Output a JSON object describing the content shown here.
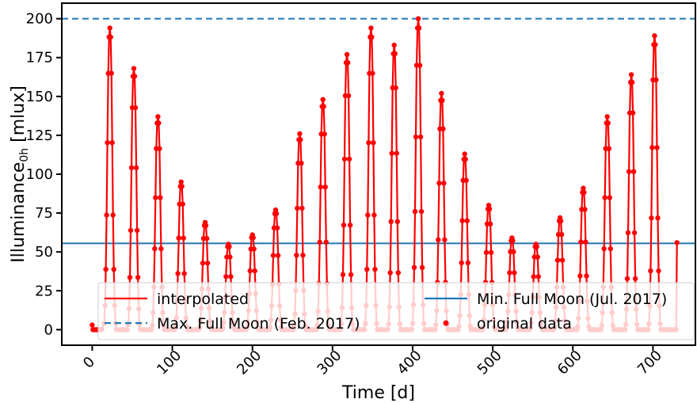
{
  "chart_data": {
    "type": "line",
    "xlabel": "Time [d]",
    "ylabel_main": "Illuminance",
    "ylabel_sub": "0h",
    "ylabel_unit": " [mlux]",
    "xlim": [
      -38,
      753
    ],
    "ylim": [
      -10,
      210
    ],
    "xticks": [
      0,
      100,
      200,
      300,
      400,
      500,
      600,
      700
    ],
    "yticks": [
      0,
      25,
      50,
      75,
      100,
      125,
      150,
      175,
      200
    ],
    "grid": false,
    "legend_placement": "lower-center",
    "legend": [
      {
        "label": "interpolated",
        "kind": "line",
        "color": "#ff0000"
      },
      {
        "label": "Max. Full Moon (Feb. 2017)",
        "kind": "dashed",
        "color": "#1f77b4"
      },
      {
        "label": "Min. Full Moon (Jul. 2017)",
        "kind": "line",
        "color": "#1f77b4"
      },
      {
        "label": "original data",
        "kind": "marker",
        "color": "#ff0000"
      }
    ],
    "reference_lines": [
      {
        "name": "Max. Full Moon (Feb. 2017)",
        "y": 200,
        "style": "dashed",
        "color": "#1f77b4"
      },
      {
        "name": "Min. Full Moon (Jul. 2017)",
        "y": 55.5,
        "style": "solid",
        "color": "#1f77b4"
      }
    ],
    "series_color": "#ff0000",
    "cycles": [
      {
        "peak_day": 22,
        "peak": 194
      },
      {
        "peak_day": 52,
        "peak": 168
      },
      {
        "peak_day": 82,
        "peak": 137
      },
      {
        "peak_day": 111,
        "peak": 95
      },
      {
        "peak_day": 141,
        "peak": 69
      },
      {
        "peak_day": 170,
        "peak": 55
      },
      {
        "peak_day": 200,
        "peak": 61
      },
      {
        "peak_day": 229,
        "peak": 77
      },
      {
        "peak_day": 259,
        "peak": 126
      },
      {
        "peak_day": 288,
        "peak": 148
      },
      {
        "peak_day": 318,
        "peak": 177
      },
      {
        "peak_day": 348,
        "peak": 194
      },
      {
        "peak_day": 377,
        "peak": 183
      },
      {
        "peak_day": 407,
        "peak": 200
      },
      {
        "peak_day": 436,
        "peak": 152
      },
      {
        "peak_day": 465,
        "peak": 113
      },
      {
        "peak_day": 495,
        "peak": 80
      },
      {
        "peak_day": 524,
        "peak": 59
      },
      {
        "peak_day": 554,
        "peak": 55
      },
      {
        "peak_day": 584,
        "peak": 72
      },
      {
        "peak_day": 613,
        "peak": 91
      },
      {
        "peak_day": 643,
        "peak": 137
      },
      {
        "peak_day": 673,
        "peak": 164
      },
      {
        "peak_day": 702,
        "peak": 189
      }
    ],
    "start_points": [
      {
        "x": 0,
        "y": 3
      },
      {
        "x": 1,
        "y": 0
      },
      {
        "x": 2,
        "y": 0
      },
      {
        "x": 3,
        "y": 0
      },
      {
        "x": 4,
        "y": 0
      },
      {
        "x": 5,
        "y": 0
      },
      {
        "x": 6,
        "y": 0
      },
      {
        "x": 7,
        "y": 0
      },
      {
        "x": 8,
        "y": 0
      },
      {
        "x": 9,
        "y": 0
      },
      {
        "x": 10,
        "y": 0
      },
      {
        "x": 11,
        "y": 0
      },
      {
        "x": 12,
        "y": 0
      }
    ],
    "end_point": {
      "x": 730,
      "y": 56
    }
  }
}
